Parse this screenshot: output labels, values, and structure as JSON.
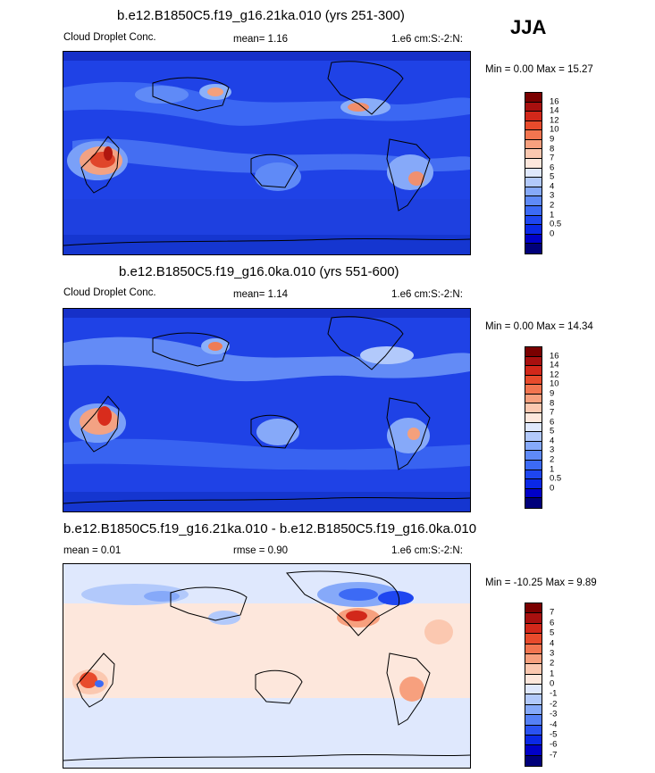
{
  "season": "JJA",
  "palette": {
    "pos": [
      "#00007a",
      "#0000c8",
      "#0a28e6",
      "#1e46f0",
      "#3c6af5",
      "#5f8af7",
      "#86a9f9",
      "#b2c9fb",
      "#dfe8fd",
      "#fde7dc",
      "#fbc8b0",
      "#f7a07e",
      "#f27550",
      "#e84b2c",
      "#d2281a",
      "#a8100f",
      "#7a0000"
    ],
    "diff": [
      "#00007a",
      "#0000c8",
      "#0a28e6",
      "#2a52f2",
      "#5580f6",
      "#86a9f9",
      "#b2c9fb",
      "#dfe8fd",
      "#fde7dc",
      "#fbc8b0",
      "#f7a07e",
      "#f27550",
      "#e84b2c",
      "#d2281a",
      "#a8100f",
      "#7a0000"
    ]
  },
  "panels": [
    {
      "title": "b.e12.B1850C5.f19_g16.21ka.010 (yrs 251-300)",
      "left_label": "Cloud Droplet Conc.",
      "stat_label": "mean=  1.16",
      "units": "1.e6 cm:S:-2:N:",
      "minmax": "Min =   0.00 Max =  15.27",
      "ticks": [
        "16",
        "14",
        "12",
        "10",
        "9",
        "8",
        "7",
        "6",
        "5",
        "4",
        "3",
        "2",
        "1",
        "0.5",
        "0"
      ]
    },
    {
      "title": "b.e12.B1850C5.f19_g16.0ka.010 (yrs 551-600)",
      "left_label": "Cloud Droplet Conc.",
      "stat_label": "mean=  1.14",
      "units": "1.e6 cm:S:-2:N:",
      "minmax": "Min =   0.00 Max =  14.34",
      "ticks": [
        "16",
        "14",
        "12",
        "10",
        "9",
        "8",
        "7",
        "6",
        "5",
        "4",
        "3",
        "2",
        "1",
        "0.5",
        "0"
      ]
    },
    {
      "title": "b.e12.B1850C5.f19_g16.21ka.010 - b.e12.B1850C5.f19_g16.0ka.010",
      "left_label": "mean =   0.01",
      "stat_label": "rmse =   0.90",
      "units": "1.e6 cm:S:-2:N:",
      "minmax": "Min = -10.25 Max =   9.89",
      "ticks": [
        "7",
        "6",
        "5",
        "4",
        "3",
        "2",
        "1",
        "0",
        "-1",
        "-2",
        "-3",
        "-4",
        "-5",
        "-6",
        "-7"
      ]
    }
  ]
}
